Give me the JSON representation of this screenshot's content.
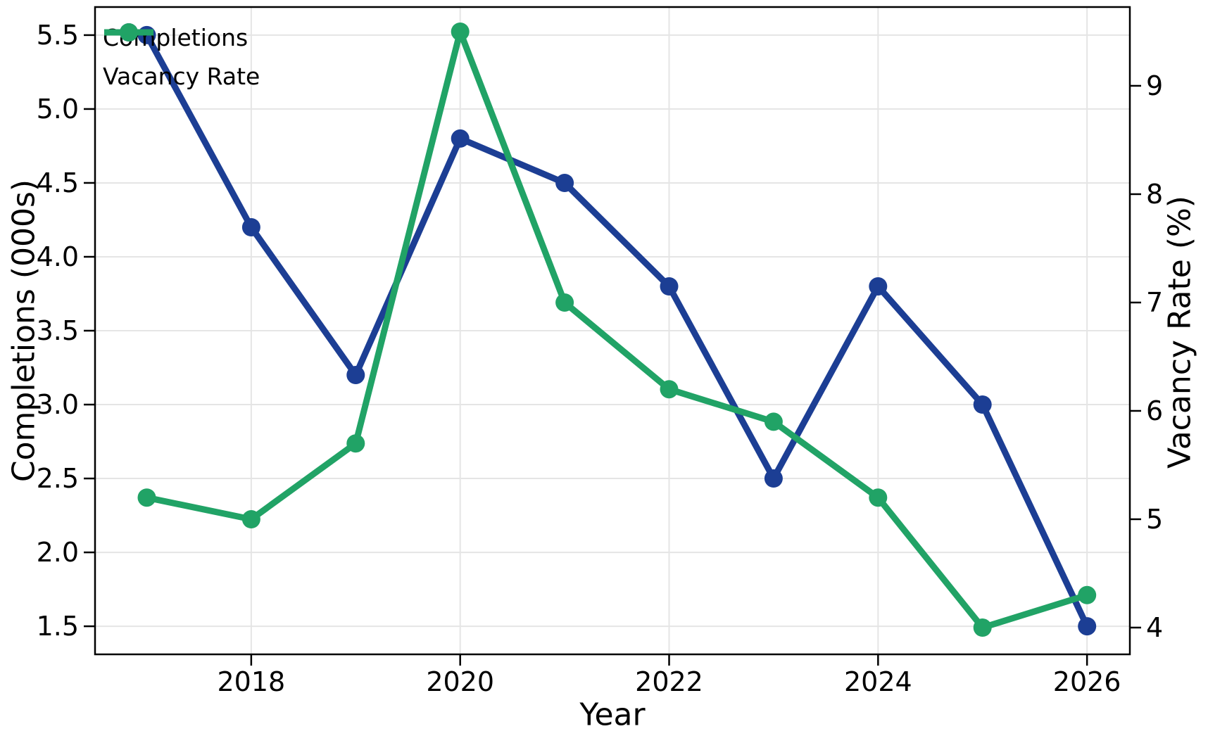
{
  "figure": {
    "background": "#ffffff",
    "grid_color": "#e5e5e5",
    "spine_color": "#000000",
    "legend": {
      "items": [
        {
          "label": "Completions",
          "color": "#1c3e94"
        },
        {
          "label": "Vacancy Rate",
          "color": "#21a366"
        }
      ]
    }
  },
  "chart_data": {
    "type": "line",
    "title": "",
    "x": [
      2017,
      2018,
      2019,
      2020,
      2021,
      2022,
      2023,
      2024,
      2025,
      2026
    ],
    "series": [
      {
        "name": "Completions",
        "axis": "left",
        "color": "#1c3e94",
        "values": [
          5.5,
          4.2,
          3.2,
          4.8,
          4.5,
          3.8,
          2.5,
          3.8,
          3.0,
          1.5
        ]
      },
      {
        "name": "Vacancy Rate",
        "axis": "right",
        "color": "#21a366",
        "values": [
          5.2,
          5.0,
          5.7,
          9.5,
          7.0,
          6.2,
          5.9,
          5.2,
          4.0,
          4.3
        ]
      }
    ],
    "xlabel": "Year",
    "ylabel_left": "Completions (000s)",
    "ylabel_right": "Vacancy Rate (%)",
    "xlim": [
      2016.505,
      2026.41
    ],
    "ylim_left": [
      1.31,
      5.69
    ],
    "ylim_right": [
      3.753,
      9.727
    ],
    "grid": true,
    "legend_position": "upper left",
    "x_ticks": [
      2018,
      2020,
      2022,
      2024,
      2026
    ],
    "x_tick_labels": [
      "2018",
      "2020",
      "2022",
      "2024",
      "2026"
    ],
    "y_left_ticks": [
      5.5,
      5.0,
      4.5,
      4.0,
      3.5,
      3.0,
      2.5,
      2.0,
      1.5
    ],
    "y_left_tick_labels": [
      "5.5",
      "5.0",
      "4.5",
      "4.0",
      "3.5",
      "3.0",
      "2.5",
      "2.0",
      "1.5"
    ],
    "y_right_ticks": [
      9,
      8,
      7,
      6,
      5,
      4
    ],
    "y_right_tick_labels": [
      "9",
      "8",
      "7",
      "6",
      "5",
      "4"
    ]
  }
}
